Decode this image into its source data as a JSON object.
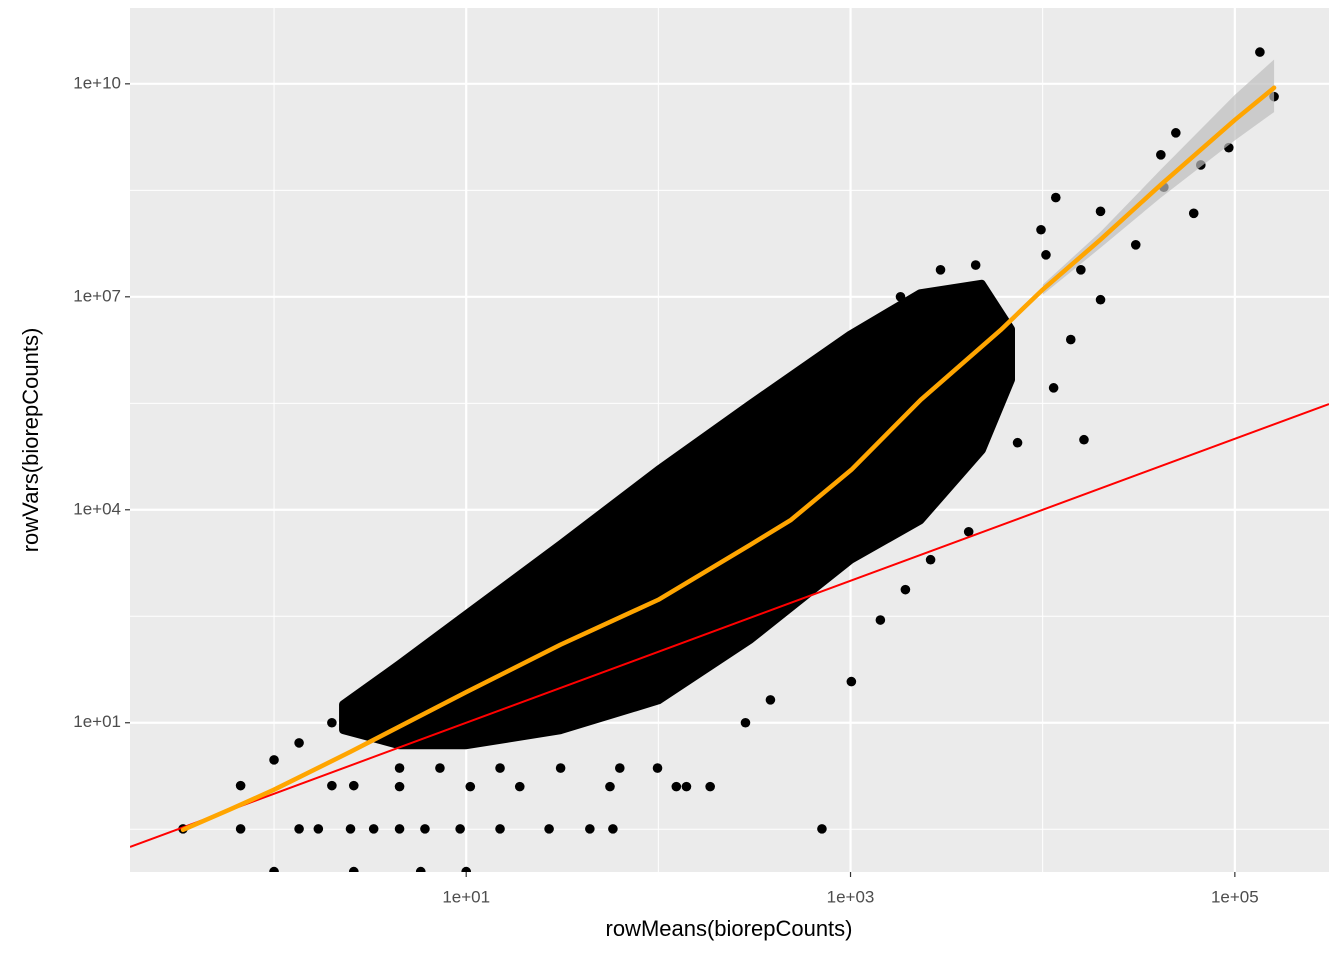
{
  "chart_data": {
    "type": "scatter",
    "x_label": "rowMeans(biorepCounts)",
    "y_label": "rowVars(biorepCounts)",
    "log_x": true,
    "log_y": true,
    "grid": true,
    "xlim": [
      0.178,
      309000
    ],
    "ylim": [
      0.079,
      117000000000
    ],
    "xticks": [
      {
        "value": 10,
        "label": "1e+01"
      },
      {
        "value": 1000,
        "label": "1e+03"
      },
      {
        "value": 100000,
        "label": "1e+05"
      }
    ],
    "yticks": [
      {
        "value": 10,
        "label": "1e+01"
      },
      {
        "value": 10000,
        "label": "1e+04"
      },
      {
        "value": 10000000,
        "label": "1e+07"
      },
      {
        "value": 10000000000,
        "label": "1e+10"
      }
    ],
    "minor_xticks": [
      1,
      100,
      10000
    ],
    "minor_yticks": [
      0.316,
      316,
      316000,
      316000000
    ],
    "point_color": "#000000",
    "cloud": {
      "x": [
        2.3,
        4.5,
        10,
        31,
        100,
        300,
        1000,
        2300,
        4800,
        6800
      ],
      "upper": [
        18,
        66,
        330,
        3200,
        36000,
        300000,
        2900000,
        11000000,
        15000000,
        3500000
      ],
      "lower": [
        8,
        4.9,
        4.9,
        8,
        21,
        150,
        2000,
        7200,
        70000,
        680000
      ]
    },
    "points": {
      "x": [
        0.336,
        0.67,
        0.67,
        1.0,
        1.0,
        1.35,
        1.7,
        1.35,
        2.0,
        2.0,
        2.6,
        2.5,
        3.3,
        4.5,
        6.1,
        9.3,
        15,
        27,
        44,
        58,
        2.6,
        5.8,
        10,
        4.5,
        7.3,
        15,
        31,
        63,
        4.5,
        10.5,
        19,
        56,
        140,
        186,
        710,
        99,
        124,
        284,
        383,
        1010,
        1430,
        1930,
        2610,
        4120,
        7400,
        16400,
        11400,
        14000,
        20000,
        30500,
        41200,
        42700,
        49300,
        61100,
        66500,
        93000,
        135000,
        160000,
        11700,
        20000,
        9800,
        2940,
        4480,
        1820,
        15800,
        10400
      ],
      "y": [
        0.32,
        0.32,
        1.3,
        3.0,
        0.08,
        0.32,
        0.32,
        5.2,
        10,
        1.3,
        1.3,
        0.32,
        0.32,
        0.32,
        0.32,
        0.32,
        0.32,
        0.32,
        0.32,
        0.32,
        0.08,
        0.08,
        0.08,
        2.3,
        2.3,
        2.3,
        2.3,
        2.3,
        1.26,
        1.26,
        1.26,
        1.26,
        1.26,
        1.26,
        0.32,
        2.3,
        1.26,
        10,
        21,
        38,
        280,
        750,
        1980,
        4900,
        88000,
        97000,
        522000,
        2500000,
        9100000,
        54000000,
        1000000000,
        350000000,
        2040000000,
        150000000,
        720000000,
        1260000000,
        28000000000,
        6600000000,
        250000000,
        160000000,
        88000000,
        24000000,
        28000000,
        10000000,
        24000000,
        39000000
      ]
    },
    "smooth": {
      "color": "#ffa500",
      "x": [
        0.336,
        0.59,
        1.0,
        2.5,
        10,
        31,
        100,
        300,
        490,
        1010,
        2320,
        6040,
        10000,
        20000,
        41200,
        100000,
        160000
      ],
      "y": [
        0.31,
        0.6,
        1.14,
        3.9,
        27,
        126,
        540,
        3200,
        7200,
        36600,
        354000,
        3400000,
        12600000,
        64000000,
        380000000,
        3100000000,
        8800000000
      ]
    },
    "ribbon": {
      "color": "#bebebe",
      "x": [
        10000,
        20000,
        41200,
        100000,
        160000
      ],
      "upper": [
        14800000,
        82000000,
        620000000,
        7000000000,
        22000000000
      ],
      "lower": [
        10700000,
        49000000,
        250000000,
        1600000000,
        4000000000
      ]
    },
    "abline": {
      "intercept": 0,
      "slope": 1,
      "color": "#ff0000"
    }
  }
}
